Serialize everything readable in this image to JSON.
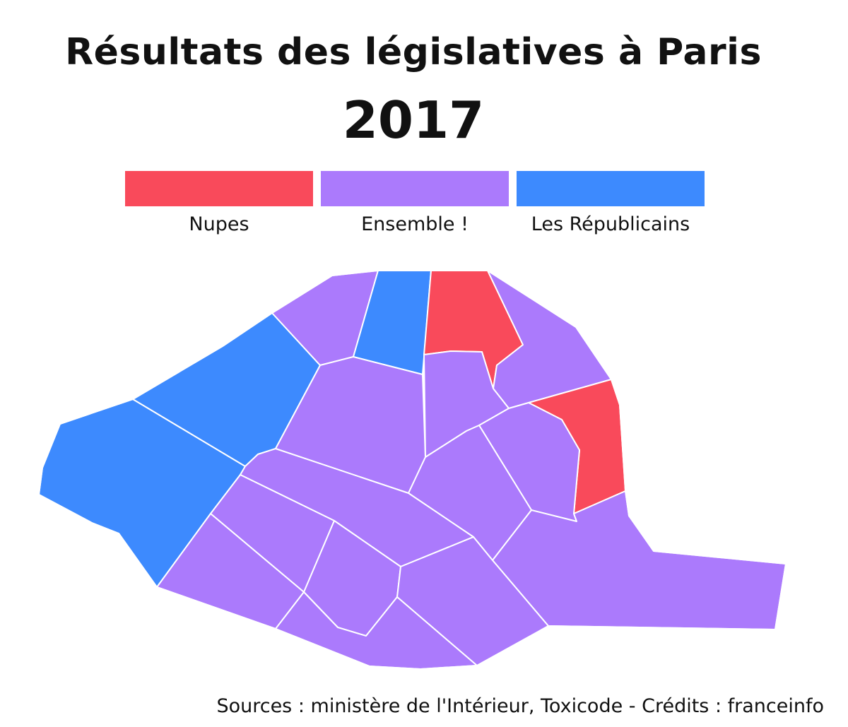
{
  "title": {
    "line1": "Résultats des législatives à Paris",
    "line2": "2017"
  },
  "legend": [
    {
      "key": "nupes",
      "label": "Nupes",
      "color": "#f94a5b"
    },
    {
      "key": "ensemble",
      "label": "Ensemble !",
      "color": "#ab7afc"
    },
    {
      "key": "lr",
      "label": "Les Républicains",
      "color": "#3d8afe"
    }
  ],
  "map": {
    "districts": [
      "lr",
      "lr",
      "ensemble",
      "lr",
      "nupes",
      "ensemble",
      "nupes",
      "ensemble",
      "ensemble",
      "ensemble",
      "ensemble",
      "ensemble",
      "ensemble",
      "ensemble",
      "ensemble",
      "ensemble",
      "ensemble",
      "ensemble"
    ]
  },
  "footer": {
    "sources": "Sources : ministère de l'Intérieur, Toxicode - Crédits : franceinfo"
  }
}
